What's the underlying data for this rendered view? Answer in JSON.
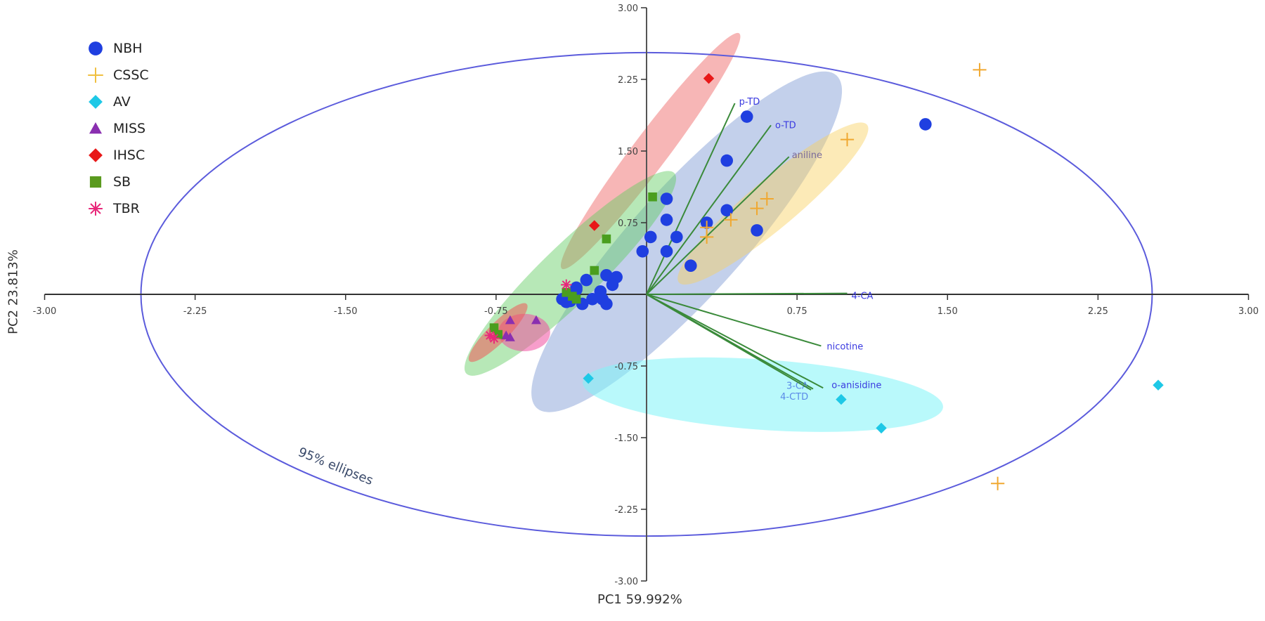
{
  "chart_data": {
    "type": "scatter",
    "title": "",
    "xlabel": "PC1 59.992%",
    "ylabel": "PC2  23.813%",
    "xlim": [
      -3.0,
      3.0
    ],
    "ylim": [
      -3.0,
      3.0
    ],
    "x_ticks": [
      "-3.00",
      "-2.25",
      "-1.50",
      "-0.75",
      "0.75",
      "1.50",
      "2.25",
      "3.00"
    ],
    "y_ticks": [
      "3.00",
      "2.25",
      "1.50",
      "0.75",
      "-0.75",
      "-1.50",
      "-2.25",
      "-3.00"
    ],
    "grid": false,
    "legend_position": "top-left",
    "annotation": "95% ellipses",
    "overall_ellipse": {
      "cx": 0.0,
      "cy": 0.0,
      "rx": 2.52,
      "ry": 2.53,
      "color": "#5b5bdc"
    },
    "series": [
      {
        "name": "NBH",
        "marker": "circle",
        "color": "#1f3fe0",
        "points": [
          [
            0.5,
            1.86
          ],
          [
            0.4,
            1.4
          ],
          [
            0.1,
            1.0
          ],
          [
            0.1,
            0.78
          ],
          [
            0.3,
            0.75
          ],
          [
            0.02,
            0.6
          ],
          [
            0.15,
            0.6
          ],
          [
            0.1,
            0.45
          ],
          [
            -0.02,
            0.45
          ],
          [
            0.22,
            0.3
          ],
          [
            0.55,
            0.67
          ],
          [
            -0.15,
            0.18
          ],
          [
            -0.2,
            0.2
          ],
          [
            -0.17,
            0.1
          ],
          [
            -0.3,
            0.15
          ],
          [
            -0.35,
            0.07
          ],
          [
            -0.35,
            0.05
          ],
          [
            -0.23,
            0.03
          ],
          [
            -0.22,
            -0.05
          ],
          [
            -0.27,
            -0.05
          ],
          [
            -0.4,
            -0.03
          ],
          [
            -0.42,
            -0.05
          ],
          [
            -0.2,
            -0.1
          ],
          [
            -0.38,
            -0.07
          ],
          [
            -0.4,
            -0.08
          ],
          [
            -0.32,
            -0.1
          ],
          [
            1.39,
            1.78
          ],
          [
            0.4,
            0.88
          ]
        ]
      },
      {
        "name": "CSSC",
        "marker": "plus",
        "color": "#f0a830",
        "points": [
          [
            1.66,
            2.35
          ],
          [
            1.0,
            1.62
          ],
          [
            0.6,
            1.0
          ],
          [
            0.55,
            0.9
          ],
          [
            0.42,
            0.78
          ],
          [
            0.3,
            0.7
          ],
          [
            0.3,
            0.6
          ],
          [
            1.75,
            -1.98
          ]
        ]
      },
      {
        "name": "AV",
        "marker": "diamond",
        "color": "#1ec8e6",
        "points": [
          [
            -0.29,
            -0.88
          ],
          [
            0.97,
            -1.1
          ],
          [
            1.17,
            -1.4
          ],
          [
            2.55,
            -0.95
          ]
        ]
      },
      {
        "name": "MISS",
        "marker": "triangle",
        "color": "#8a2fb0",
        "points": [
          [
            -0.68,
            -0.27
          ],
          [
            -0.55,
            -0.27
          ],
          [
            -0.68,
            -0.45
          ],
          [
            -0.7,
            -0.43
          ]
        ]
      },
      {
        "name": "IHSC",
        "marker": "diamond",
        "color": "#e81818",
        "points": [
          [
            0.31,
            2.26
          ],
          [
            -0.26,
            0.72
          ]
        ]
      },
      {
        "name": "SB",
        "marker": "square",
        "color": "#4a9e1e",
        "points": [
          [
            0.03,
            1.02
          ],
          [
            -0.2,
            0.58
          ],
          [
            -0.26,
            0.25
          ],
          [
            -0.4,
            0.02
          ],
          [
            -0.37,
            -0.02
          ],
          [
            -0.35,
            -0.05
          ],
          [
            -0.76,
            -0.35
          ],
          [
            -0.74,
            -0.42
          ]
        ]
      },
      {
        "name": "TBR",
        "marker": "asterisk",
        "color": "#e8287a",
        "points": [
          [
            -0.4,
            0.1
          ],
          [
            -0.78,
            -0.43
          ],
          [
            -0.76,
            -0.46
          ]
        ]
      }
    ],
    "group_ellipses": [
      {
        "name": "NBH",
        "cx": 0.2,
        "cy": 0.55,
        "rx": 1.55,
        "ry": 0.5,
        "angle": 48,
        "color": "#6f8fd0",
        "opacity": 0.42
      },
      {
        "name": "CSSC",
        "cx": 0.63,
        "cy": 0.95,
        "rx": 0.85,
        "ry": 0.22,
        "angle": 40,
        "color": "#f8d060",
        "opacity": 0.45
      },
      {
        "name": "AV",
        "cx": 0.58,
        "cy": -1.05,
        "rx": 1.25,
        "ry": 0.32,
        "angle": -4,
        "color": "#7ff4f8",
        "opacity": 0.55
      },
      {
        "name": "IHSC",
        "cx": 0.02,
        "cy": 1.5,
        "rx": 1.02,
        "ry": 0.16,
        "angle": 53,
        "color": "#f07a7a",
        "opacity": 0.55
      },
      {
        "name": "SB",
        "cx": -0.38,
        "cy": 0.22,
        "rx": 1.0,
        "ry": 0.26,
        "angle": 44,
        "color": "#5fcc5f",
        "opacity": 0.45
      },
      {
        "name": "MISS",
        "cx": -0.61,
        "cy": -0.4,
        "rx": 0.18,
        "ry": 0.17,
        "angle": 0,
        "color": "#f04fa0",
        "opacity": 0.55
      },
      {
        "name": "TBR",
        "cx": -0.74,
        "cy": -0.4,
        "rx": 0.28,
        "ry": 0.09,
        "angle": 45,
        "color": "#f05a5a",
        "opacity": 0.55
      }
    ],
    "loadings": [
      {
        "label": "p-TD",
        "x": 0.44,
        "y": 2.0,
        "label_color": "#3a3ae0"
      },
      {
        "label": "o-TD",
        "x": 0.62,
        "y": 1.77,
        "label_color": "#3a3ae0"
      },
      {
        "label": "aniline",
        "x": 0.71,
        "y": 1.44,
        "label_color": "#7a6a9a"
      },
      {
        "label": "4-CA",
        "x": 1.0,
        "y": 0.01,
        "label_color": "#3a3ae0"
      },
      {
        "label": "nicotine",
        "x": 0.87,
        "y": -0.54,
        "label_color": "#3a3ae0"
      },
      {
        "label": "o-anisidine",
        "x": 0.88,
        "y": -0.98,
        "label_color": "#3a3ae0"
      },
      {
        "label": "3-CA",
        "x": 0.83,
        "y": -0.99,
        "label_color": "#5a8ae8"
      },
      {
        "label": "4-CTD",
        "x": 0.82,
        "y": -1.0,
        "label_color": "#5a8ae8"
      }
    ]
  },
  "legend": {
    "items": [
      {
        "label": "NBH",
        "marker": "circle",
        "color": "#1f3fe0"
      },
      {
        "label": "CSSC",
        "marker": "plus",
        "color": "#f0c040"
      },
      {
        "label": "AV",
        "marker": "diamond",
        "color": "#1ec8e6"
      },
      {
        "label": "MISS",
        "marker": "triangle",
        "color": "#8a2fb0"
      },
      {
        "label": "IHSC",
        "marker": "diamond",
        "color": "#e81818"
      },
      {
        "label": "SB",
        "marker": "square",
        "color": "#5a9a1e"
      },
      {
        "label": "TBR",
        "marker": "asterisk",
        "color": "#e8287a"
      }
    ]
  },
  "axes": {
    "x_title": "PC1 59.992%",
    "y_title": "PC2  23.813%"
  }
}
